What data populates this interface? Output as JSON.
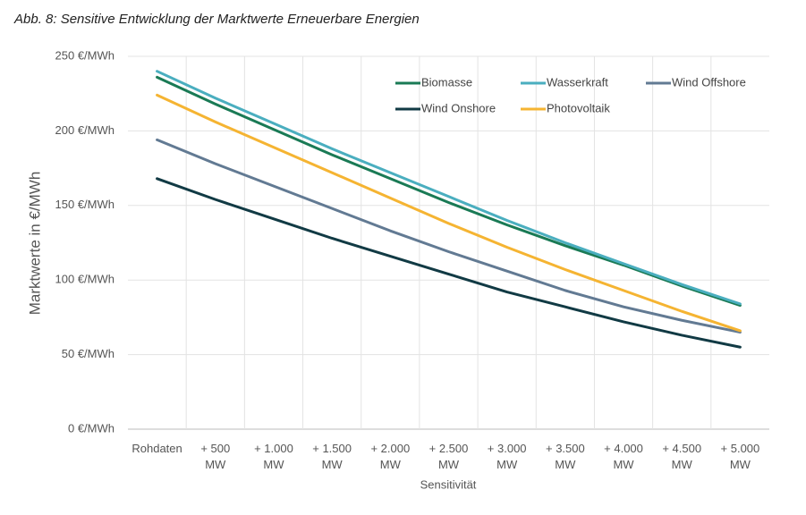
{
  "chart_data": {
    "type": "line",
    "title": "Abb. 8: Sensitive Entwicklung der Marktwerte Erneuerbare Energien",
    "xlabel": "Sensitivität",
    "ylabel": "Marktwerte in €/MWh",
    "categories": [
      "Rohdaten",
      "+ 500 MW",
      "+ 1.000 MW",
      "+ 1.500 MW",
      "+ 2.000 MW",
      "+ 2.500 MW",
      "+ 3.000 MW",
      "+ 3.500 MW",
      "+ 4.000 MW",
      "+ 4.500 MW",
      "+ 5.000 MW"
    ],
    "series": [
      {
        "name": "Biomasse",
        "color": "#1a7a55",
        "values": [
          236,
          218,
          201,
          184,
          168,
          152,
          137,
          123,
          110,
          96,
          83
        ]
      },
      {
        "name": "Wasserkraft",
        "color": "#4aaebf",
        "values": [
          240,
          222,
          205,
          188,
          172,
          156,
          140,
          125,
          111,
          97,
          84
        ]
      },
      {
        "name": "Wind Offshore",
        "color": "#627a93",
        "values": [
          194,
          178,
          163,
          148,
          133,
          119,
          106,
          93,
          82,
          73,
          65
        ]
      },
      {
        "name": "Wind Onshore",
        "color": "#113a44",
        "values": [
          168,
          154,
          141,
          128,
          116,
          104,
          92,
          82,
          72,
          63,
          55
        ]
      },
      {
        "name": "Photovoltaik",
        "color": "#f5b432",
        "values": [
          224,
          206,
          189,
          172,
          155,
          138,
          122,
          107,
          93,
          79,
          66
        ]
      }
    ],
    "ylim": [
      0,
      250
    ],
    "yticks": [
      {
        "value": 0,
        "label": "0 €/MWh"
      },
      {
        "value": 50,
        "label": "50 €/MWh"
      },
      {
        "value": 100,
        "label": "100 €/MWh"
      },
      {
        "value": 150,
        "label": "150 €/MWh"
      },
      {
        "value": 200,
        "label": "200 €/MWh"
      },
      {
        "value": 250,
        "label": "250 €/MWh"
      }
    ],
    "grid": true,
    "legend": "top-right"
  }
}
